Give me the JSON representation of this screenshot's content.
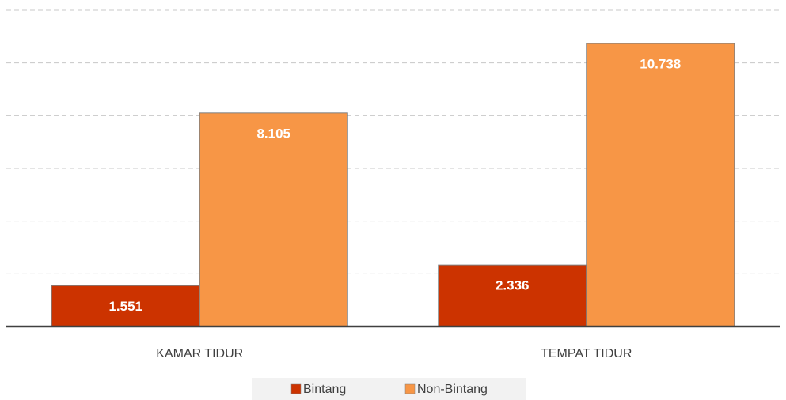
{
  "chart_data": {
    "type": "bar",
    "categories": [
      "KAMAR TIDUR",
      "TEMPAT TIDUR"
    ],
    "series": [
      {
        "name": "Bintang",
        "color": "#cc3300",
        "values": [
          1551,
          2336
        ],
        "value_labels": [
          "1.551",
          "2.336"
        ]
      },
      {
        "name": "Non-Bintang",
        "color": "#f79646",
        "values": [
          8105,
          10738
        ],
        "value_labels": [
          "8.105",
          "10.738"
        ]
      }
    ],
    "ylim": [
      0,
      12000
    ],
    "yticks": [
      0,
      2000,
      4000,
      6000,
      8000,
      10000,
      12000
    ],
    "grid": true,
    "legend": "bottom"
  }
}
